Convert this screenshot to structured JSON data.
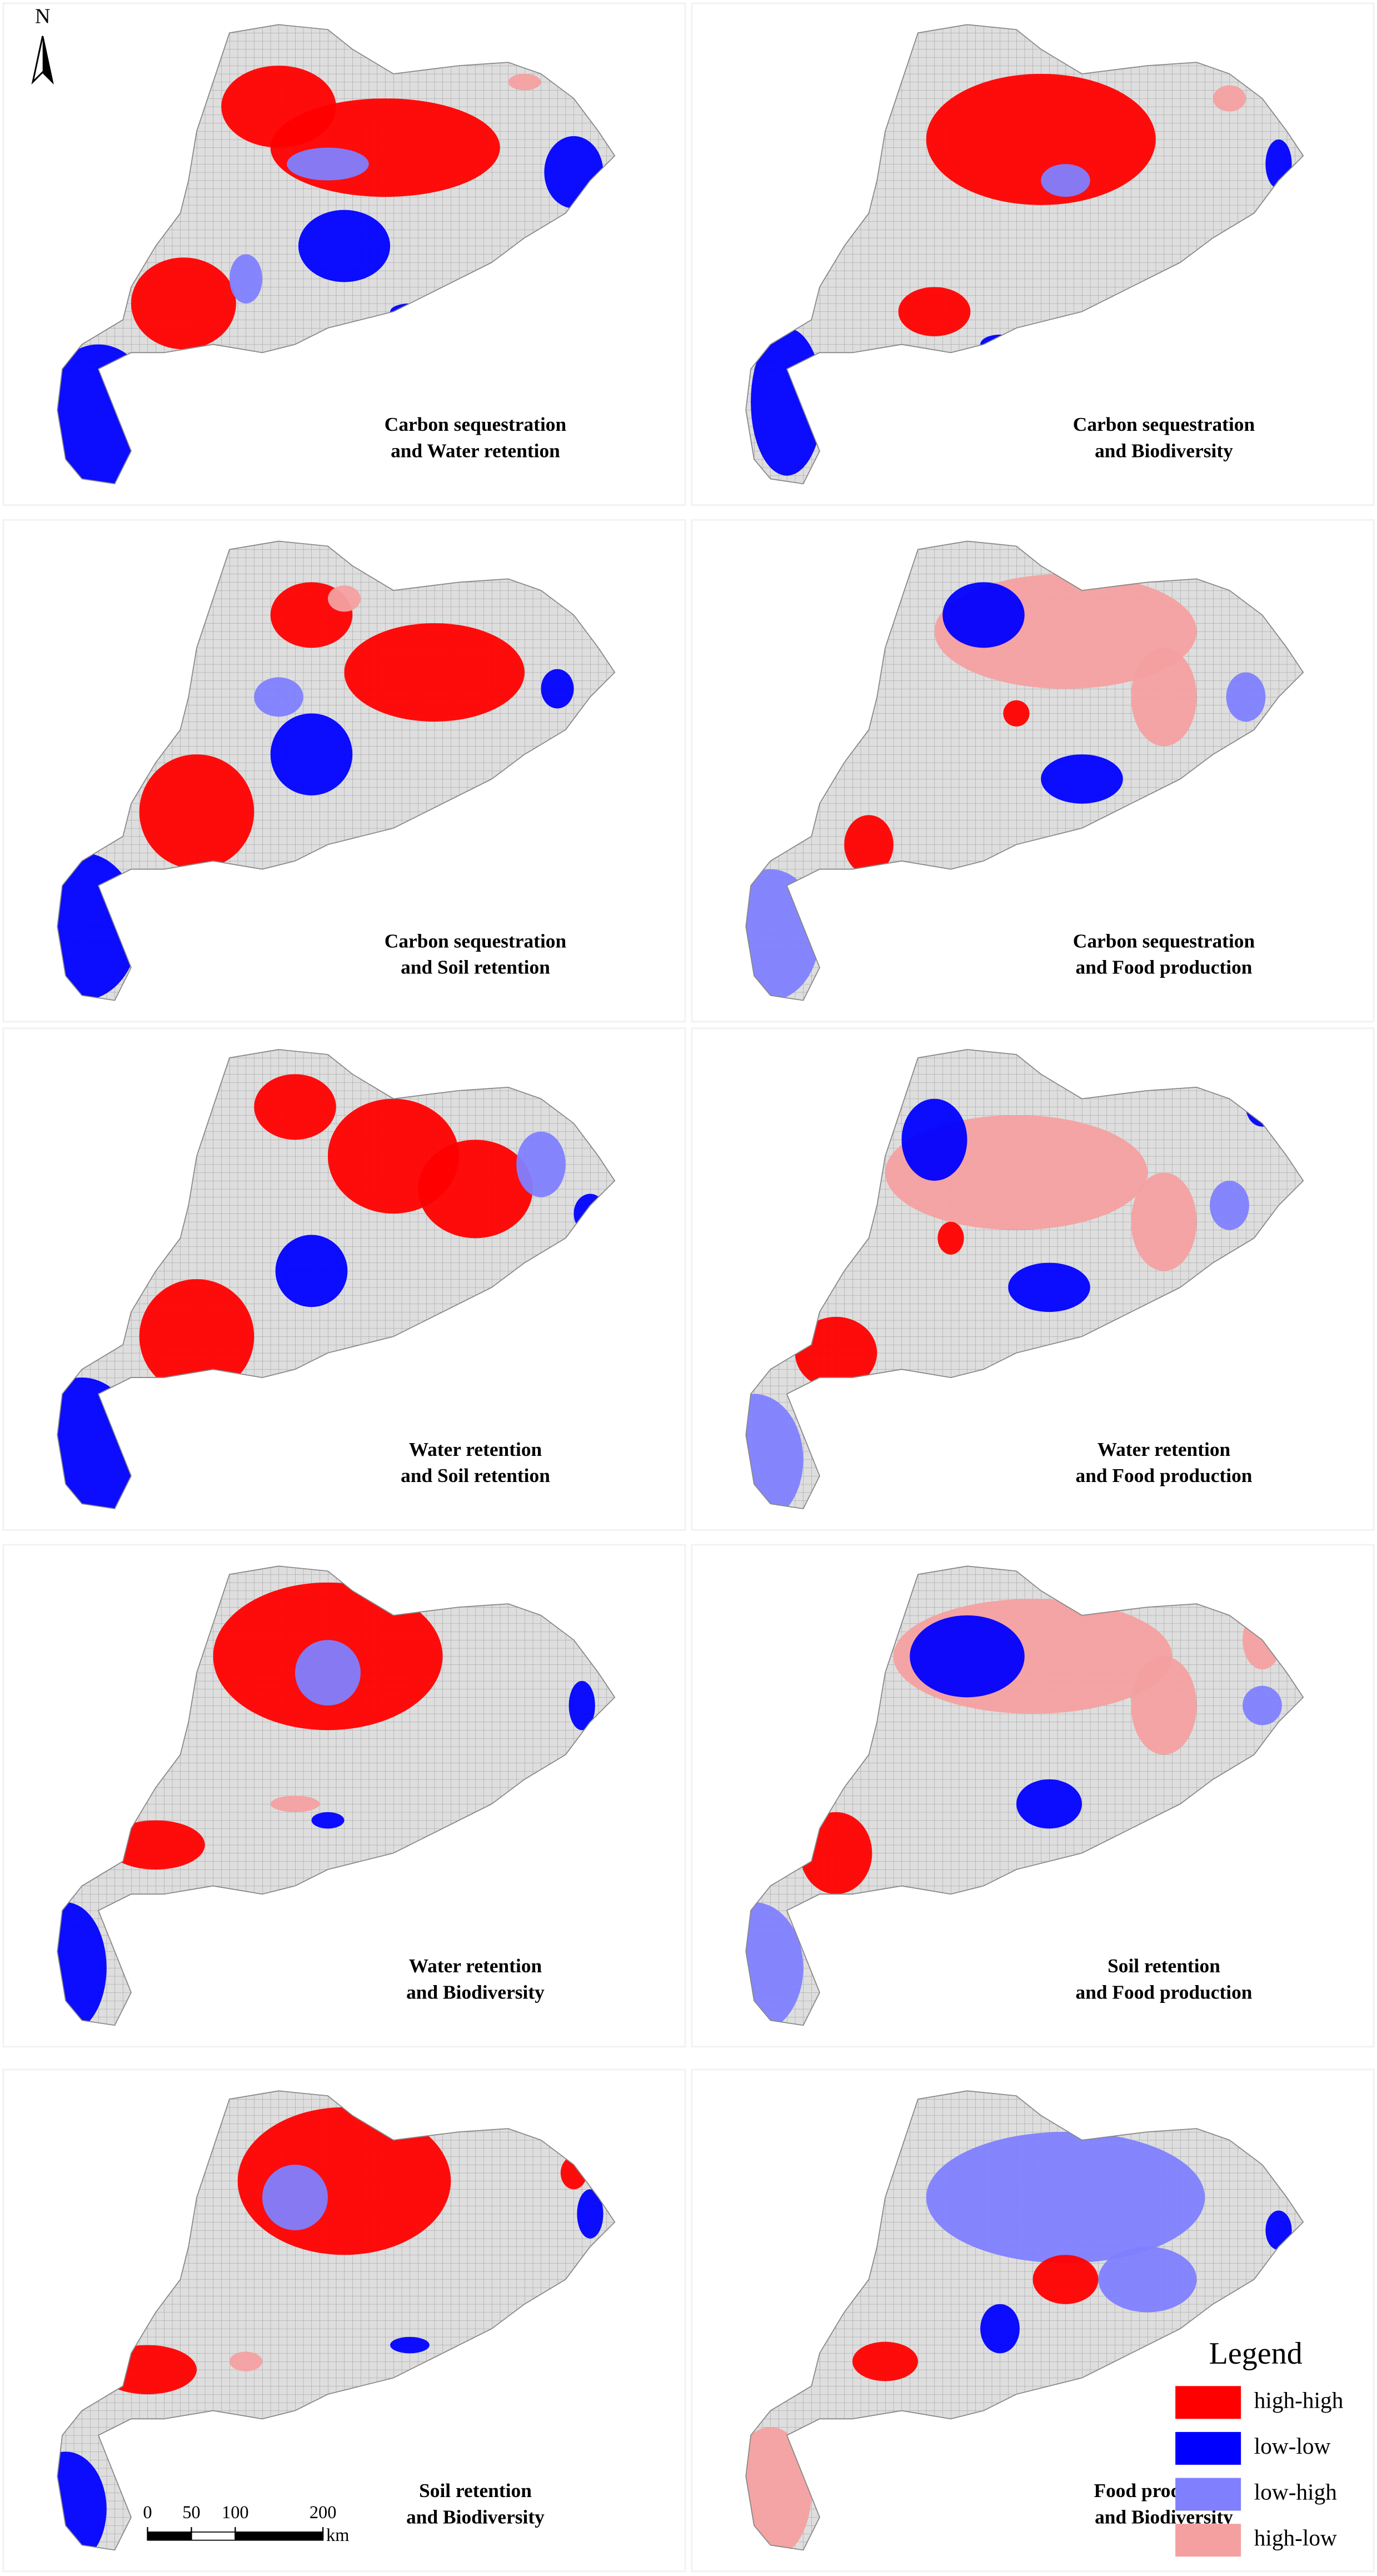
{
  "north_label": "N",
  "panels": [
    {
      "title_lines": [
        "Carbon sequestration",
        "and Water retention"
      ]
    },
    {
      "title_lines": [
        "Carbon sequestration",
        "and Biodiversity"
      ]
    },
    {
      "title_lines": [
        "Carbon sequestration",
        "and Soil retention"
      ]
    },
    {
      "title_lines": [
        "Carbon sequestration",
        "and Food production"
      ]
    },
    {
      "title_lines": [
        "Water retention",
        "and Soil retention"
      ]
    },
    {
      "title_lines": [
        "Water retention",
        "and Food production"
      ]
    },
    {
      "title_lines": [
        "Water retention",
        "and Biodiversity"
      ]
    },
    {
      "title_lines": [
        "Soil retention",
        "and Food production"
      ]
    },
    {
      "title_lines": [
        "Soil retention",
        "and Biodiversity"
      ]
    },
    {
      "title_lines": [
        "Food production",
        "and Biodiversity"
      ]
    }
  ],
  "legend": {
    "title": "Legend",
    "entries": [
      {
        "label": "high-high",
        "color": "#ff0000"
      },
      {
        "label": "low-low",
        "color": "#0000ff"
      },
      {
        "label": "low-high",
        "color": "#8080ff"
      },
      {
        "label": "high-low",
        "color": "#f4a0a0"
      }
    ]
  },
  "scale_bar": {
    "ticks": [
      0,
      50,
      100,
      200
    ],
    "unit": "km"
  }
}
